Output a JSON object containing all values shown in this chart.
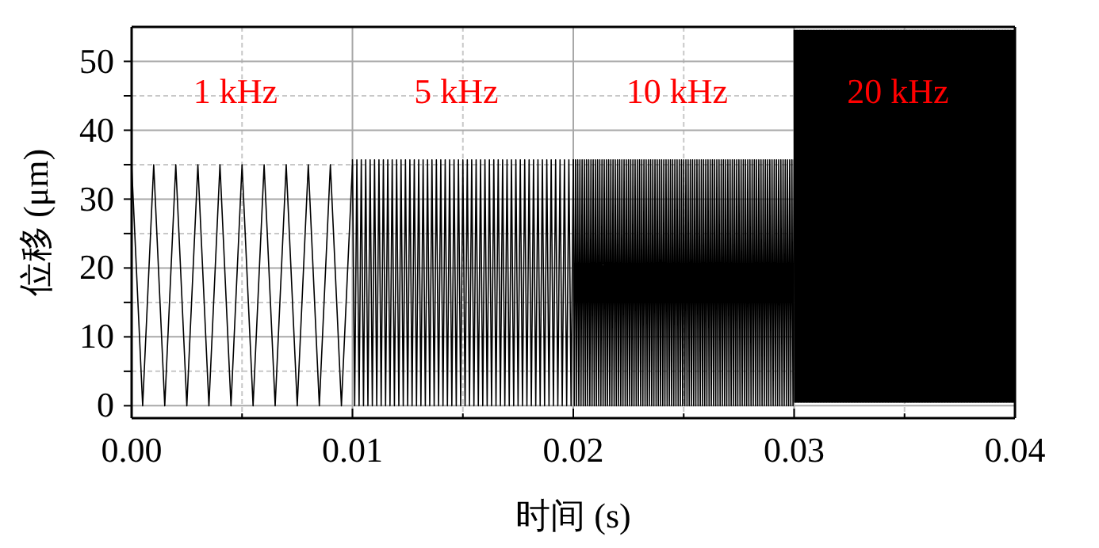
{
  "chart_data": {
    "type": "line",
    "xlabel": "时间 (s)",
    "ylabel": "位移 (μm)",
    "xlim": [
      0,
      0.04
    ],
    "ylim": [
      -1.8,
      55
    ],
    "xticks": [
      {
        "value": 0,
        "label": "0.00"
      },
      {
        "value": 0.005,
        "label": null
      },
      {
        "value": 0.01,
        "label": "0.01"
      },
      {
        "value": 0.015,
        "label": null
      },
      {
        "value": 0.02,
        "label": "0.02"
      },
      {
        "value": 0.025,
        "label": null
      },
      {
        "value": 0.03,
        "label": "0.03"
      },
      {
        "value": 0.035,
        "label": null
      },
      {
        "value": 0.04,
        "label": "0.04"
      }
    ],
    "yticks": [
      0,
      {
        "value": 5,
        "label": null
      },
      10,
      {
        "value": 15,
        "label": null
      },
      20,
      {
        "value": 25,
        "label": null
      },
      30,
      {
        "value": 35,
        "label": null
      },
      40,
      {
        "value": 45,
        "label": null
      },
      50
    ],
    "grid": true,
    "line_style": "solid",
    "marker": "none",
    "annotations": [
      "1 kHz",
      "5 kHz",
      "10 kHz",
      "20 kHz"
    ],
    "series": [
      {
        "color": "#000000",
        "x": [
          0,
          0.0005,
          0.001,
          0.0015,
          0.002,
          0.0025,
          0.003,
          0.0035,
          0.004,
          0.0045,
          0.005,
          0.0055,
          0.006,
          0.0065,
          0.007,
          0.0075,
          0.008,
          0.0085,
          0.009,
          0.0095,
          0.01
        ],
        "values": [
          35,
          0,
          35,
          0,
          35,
          0,
          35,
          0,
          35,
          0,
          35,
          0,
          35,
          0,
          35,
          0,
          35,
          0,
          35,
          0,
          35
        ]
      },
      {
        "color": "#000000",
        "x": [
          0.01,
          0.0101,
          0.0102,
          0.0103,
          0.0104,
          0.0105,
          0.0106,
          0.0107,
          0.0108,
          0.0109,
          0.011,
          0.0111,
          0.0112,
          0.0113,
          0.0114,
          0.0115,
          0.0116,
          0.0117,
          0.0118,
          0.0119,
          0.012,
          0.0121,
          0.0122,
          0.0123,
          0.0124,
          0.0125,
          0.0126,
          0.0127,
          0.0128,
          0.0129,
          0.013,
          0.0131,
          0.0132,
          0.0133,
          0.0134,
          0.0135,
          0.0136,
          0.0137,
          0.0138,
          0.0139,
          0.014,
          0.0141,
          0.0142,
          0.0143,
          0.0144,
          0.0145,
          0.0146,
          0.0147,
          0.0148,
          0.0149,
          0.015,
          0.0151,
          0.0152,
          0.0153,
          0.0154,
          0.0155,
          0.0156,
          0.0157,
          0.0158,
          0.0159,
          0.016,
          0.0161,
          0.0162,
          0.0163,
          0.0164,
          0.0165,
          0.0166,
          0.0167,
          0.0168,
          0.0169,
          0.017,
          0.0171,
          0.0172,
          0.0173,
          0.0174,
          0.0175,
          0.0176,
          0.0177,
          0.0178,
          0.0179,
          0.018,
          0.0181,
          0.0182,
          0.0183,
          0.0184,
          0.0185,
          0.0186,
          0.0187,
          0.0188,
          0.0189,
          0.019,
          0.0191,
          0.0192,
          0.0193,
          0.0194,
          0.0195,
          0.0196,
          0.0197,
          0.0198,
          0.0199,
          0.02
        ],
        "values": [
          35.7,
          0,
          35.7,
          0,
          35.7,
          0,
          35.7,
          0,
          35.7,
          0,
          35.7,
          0,
          35.7,
          0,
          35.7,
          0,
          35.7,
          0,
          35.7,
          0,
          35.7,
          0,
          35.7,
          0,
          35.7,
          0,
          35.7,
          0,
          35.7,
          0,
          35.7,
          0,
          35.7,
          0,
          35.7,
          0,
          35.7,
          0,
          35.7,
          0,
          35.7,
          0,
          35.7,
          0,
          35.7,
          0,
          35.7,
          0,
          35.7,
          0,
          35.7,
          0,
          35.7,
          0,
          35.7,
          0,
          35.7,
          0,
          35.7,
          0,
          35.7,
          0,
          35.7,
          0,
          35.7,
          0,
          35.7,
          0,
          35.7,
          0,
          35.7,
          0,
          35.7,
          0,
          35.7,
          0,
          35.7,
          0,
          35.7,
          0,
          35.7,
          0,
          35.7,
          0,
          35.7,
          0,
          35.7,
          0,
          35.7,
          0,
          35.7,
          0,
          35.7,
          0,
          35.7,
          0,
          35.7,
          0,
          35.7,
          0,
          35.7
        ]
      },
      {
        "color": "#000000",
        "x": [
          0.02,
          0.02005,
          0.0201,
          0.02015,
          0.0202,
          0.02025,
          0.0203,
          0.02035,
          0.0204,
          0.02045,
          0.0205,
          0.02055,
          0.0206,
          0.02065,
          0.0207,
          0.02075,
          0.0208,
          0.02085,
          0.0209,
          0.02095,
          0.021,
          0.02105,
          0.0211,
          0.02115,
          0.0212,
          0.02125,
          0.0213,
          0.02135,
          0.0214,
          0.02145,
          0.0215,
          0.02155,
          0.0216,
          0.02165,
          0.0217,
          0.02175,
          0.0218,
          0.02185,
          0.0219,
          0.02195,
          0.022,
          0.02205,
          0.0221,
          0.02215,
          0.0222,
          0.02225,
          0.0223,
          0.02235,
          0.0224,
          0.02245,
          0.0225,
          0.02255,
          0.0226,
          0.02265,
          0.0227,
          0.02275,
          0.0228,
          0.02285,
          0.0229,
          0.02295,
          0.023,
          0.02305,
          0.0231,
          0.02315,
          0.0232,
          0.02325,
          0.0233,
          0.02335,
          0.0234,
          0.02345,
          0.0235,
          0.02355,
          0.0236,
          0.02365,
          0.0237,
          0.02375,
          0.0238,
          0.02385,
          0.0239,
          0.02395,
          0.024,
          0.02405,
          0.0241,
          0.02415,
          0.0242,
          0.02425,
          0.0243,
          0.02435,
          0.0244,
          0.02445,
          0.0245,
          0.02455,
          0.0246,
          0.02465,
          0.0247,
          0.02475,
          0.0248,
          0.02485,
          0.0249,
          0.02495,
          0.025,
          0.02505,
          0.0251,
          0.02515,
          0.0252,
          0.02525,
          0.0253,
          0.02535,
          0.0254,
          0.02545,
          0.0255,
          0.02555,
          0.0256,
          0.02565,
          0.0257,
          0.02575,
          0.0258,
          0.02585,
          0.0259,
          0.02595,
          0.026,
          0.02605,
          0.0261,
          0.02615,
          0.0262,
          0.02625,
          0.0263,
          0.02635,
          0.0264,
          0.02645,
          0.0265,
          0.02655,
          0.0266,
          0.02665,
          0.0267,
          0.02675,
          0.0268,
          0.02685,
          0.0269,
          0.02695,
          0.027,
          0.02705,
          0.0271,
          0.02715,
          0.0272,
          0.02725,
          0.0273,
          0.02735,
          0.0274,
          0.02745,
          0.0275,
          0.02755,
          0.0276,
          0.02765,
          0.0277,
          0.02775,
          0.0278,
          0.02785,
          0.0279,
          0.02795,
          0.028,
          0.02805,
          0.0281,
          0.02815,
          0.0282,
          0.02825,
          0.0283,
          0.02835,
          0.0284,
          0.02845,
          0.0285,
          0.02855,
          0.0286,
          0.02865,
          0.0287,
          0.02875,
          0.0288,
          0.02885,
          0.0289,
          0.02895,
          0.029,
          0.02905,
          0.0291,
          0.02915,
          0.0292,
          0.02925,
          0.0293,
          0.02935,
          0.0294,
          0.02945,
          0.0295,
          0.02955,
          0.0296,
          0.02965,
          0.0297,
          0.02975,
          0.0298,
          0.02985,
          0.0299,
          0.02995,
          0.03
        ],
        "values": [
          35.7,
          0,
          35.7,
          0,
          35.7,
          0,
          35.7,
          0,
          35.7,
          0,
          35.7,
          0,
          35.7,
          0,
          35.7,
          0,
          35.7,
          0,
          35.7,
          0,
          35.7,
          0,
          35.7,
          0,
          35.7,
          0,
          35.7,
          0,
          35.7,
          0,
          35.7,
          0,
          35.7,
          0,
          35.7,
          0,
          35.7,
          0,
          35.7,
          0,
          35.7,
          0,
          35.7,
          0,
          35.7,
          0,
          35.7,
          0,
          35.7,
          0,
          35.7,
          0,
          35.7,
          0,
          35.7,
          0,
          35.7,
          0,
          35.7,
          0,
          35.7,
          0,
          35.7,
          0,
          35.7,
          0,
          35.7,
          0,
          35.7,
          0,
          35.7,
          0,
          35.7,
          0,
          35.7,
          0,
          35.7,
          0,
          35.7,
          0,
          35.7,
          0,
          35.7,
          0,
          35.7,
          0,
          35.7,
          0,
          35.7,
          0,
          35.7,
          0,
          35.7,
          0,
          35.7,
          0,
          35.7,
          0,
          35.7,
          0,
          35.7,
          0,
          35.7,
          0,
          35.7,
          0,
          35.7,
          0,
          35.7,
          0,
          35.7,
          0,
          35.7,
          0,
          35.7,
          0,
          35.7,
          0,
          35.7,
          0,
          35.7,
          0,
          35.7,
          0,
          35.7,
          0,
          35.7,
          0,
          35.7,
          0,
          35.7,
          0,
          35.7,
          0,
          35.7,
          0,
          35.7,
          0,
          35.7,
          0,
          35.7,
          0,
          35.7,
          0,
          35.7,
          0,
          35.7,
          0,
          35.7,
          0,
          35.7,
          0,
          35.7,
          0,
          35.7,
          0,
          35.7,
          0,
          35.7,
          0,
          35.7,
          0,
          35.7,
          0,
          35.7,
          0,
          35.7,
          0,
          35.7,
          0,
          35.7,
          0,
          35.7,
          0,
          35.7,
          0,
          35.7,
          0,
          35.7,
          0,
          35.7,
          0,
          35.7,
          0,
          35.7,
          0,
          35.7,
          0,
          35.7,
          0,
          35.7,
          0,
          35.7,
          0,
          35.7,
          0,
          35.7,
          0,
          35.7,
          0,
          35.7
        ]
      },
      {
        "color": "#000000",
        "x": [
          0.03,
          0.030025,
          0.03005,
          0.030075,
          0.0301,
          0.030125,
          0.03015,
          0.030175,
          0.0302,
          0.030225,
          0.03025,
          0.030275,
          0.0303,
          0.030325,
          0.03035,
          0.030375,
          0.0304,
          0.030425,
          0.03045,
          0.030475,
          0.0305,
          0.030525,
          0.03055,
          0.030575,
          0.0306,
          0.030625,
          0.03065,
          0.030675,
          0.0307,
          0.030725,
          0.03075,
          0.030775,
          0.0308,
          0.030825,
          0.03085,
          0.030875,
          0.0309,
          0.030925,
          0.03095,
          0.030975,
          0.031,
          0.031025,
          0.03105,
          0.031075,
          0.0311,
          0.031125,
          0.03115,
          0.031175,
          0.0312,
          0.031225,
          0.03125,
          0.031275,
          0.0313,
          0.031325,
          0.03135,
          0.031375,
          0.0314,
          0.031425,
          0.03145,
          0.031475,
          0.0315,
          0.031525,
          0.03155,
          0.031575,
          0.0316,
          0.031625,
          0.03165,
          0.031675,
          0.0317,
          0.031725,
          0.03175,
          0.031775,
          0.0318,
          0.031825,
          0.03185,
          0.031875,
          0.0319,
          0.031925,
          0.03195,
          0.031975,
          0.032,
          0.032025,
          0.03205,
          0.032075,
          0.0321,
          0.032125,
          0.03215,
          0.032175,
          0.0322,
          0.032225,
          0.03225,
          0.032275,
          0.0323,
          0.032325,
          0.03235,
          0.032375,
          0.0324,
          0.032425,
          0.03245,
          0.032475,
          0.0325,
          0.032525,
          0.03255,
          0.032575,
          0.0326,
          0.032625,
          0.03265,
          0.032675,
          0.0327,
          0.032725,
          0.03275,
          0.032775,
          0.0328,
          0.032825,
          0.03285,
          0.032875,
          0.0329,
          0.032925,
          0.03295,
          0.032975,
          0.033,
          0.033025,
          0.03305,
          0.033075,
          0.0331,
          0.033125,
          0.03315,
          0.033175,
          0.0332,
          0.033225,
          0.03325,
          0.033275,
          0.0333,
          0.033325,
          0.03335,
          0.033375,
          0.0334,
          0.033425,
          0.03345,
          0.033475,
          0.0335,
          0.033525,
          0.03355,
          0.033575,
          0.0336,
          0.033625,
          0.03365,
          0.033675,
          0.0337,
          0.033725,
          0.03375,
          0.033775,
          0.0338,
          0.033825,
          0.03385,
          0.033875,
          0.0339,
          0.033925,
          0.03395,
          0.033975,
          0.034,
          0.034025,
          0.03405,
          0.034075,
          0.0341,
          0.034125,
          0.03415,
          0.034175,
          0.0342,
          0.034225,
          0.03425,
          0.034275,
          0.0343,
          0.034325,
          0.03435,
          0.034375,
          0.0344,
          0.034425,
          0.03445,
          0.034475,
          0.0345,
          0.034525,
          0.03455,
          0.034575,
          0.0346,
          0.034625,
          0.03465,
          0.034675,
          0.0347,
          0.034725,
          0.03475,
          0.034775,
          0.0348,
          0.034825,
          0.03485,
          0.034875,
          0.0349,
          0.034925,
          0.03495,
          0.034975,
          0.035,
          0.035025,
          0.03505,
          0.035075,
          0.0351,
          0.035125,
          0.03515,
          0.035175,
          0.0352,
          0.035225,
          0.03525,
          0.035275,
          0.0353,
          0.035325,
          0.03535,
          0.035375,
          0.0354,
          0.035425,
          0.03545,
          0.035475,
          0.0355,
          0.035525,
          0.03555,
          0.035575,
          0.0356,
          0.035625,
          0.03565,
          0.035675,
          0.0357,
          0.035725,
          0.03575,
          0.035775,
          0.0358,
          0.035825,
          0.03585,
          0.035875,
          0.0359,
          0.035925,
          0.03595,
          0.035975,
          0.036,
          0.036025,
          0.03605,
          0.036075,
          0.0361,
          0.036125,
          0.03615,
          0.036175,
          0.0362,
          0.036225,
          0.03625,
          0.036275,
          0.0363,
          0.036325,
          0.03635,
          0.036375,
          0.0364,
          0.036425,
          0.03645,
          0.036475,
          0.0365,
          0.036525,
          0.03655,
          0.036575,
          0.0366,
          0.036625,
          0.03665,
          0.036675,
          0.0367,
          0.036725,
          0.03675,
          0.036775,
          0.0368,
          0.036825,
          0.03685,
          0.036875,
          0.0369,
          0.036925,
          0.03695,
          0.036975,
          0.037,
          0.037025,
          0.03705,
          0.037075,
          0.0371,
          0.037125,
          0.03715,
          0.037175,
          0.0372,
          0.037225,
          0.03725,
          0.037275,
          0.0373,
          0.037325,
          0.03735,
          0.037375,
          0.0374,
          0.037425,
          0.03745,
          0.037475,
          0.0375,
          0.037525,
          0.03755,
          0.037575,
          0.0376,
          0.037625,
          0.03765,
          0.037675,
          0.0377,
          0.037725,
          0.03775,
          0.037775,
          0.0378,
          0.037825,
          0.03785,
          0.037875,
          0.0379,
          0.037925,
          0.03795,
          0.037975,
          0.038,
          0.038025,
          0.03805,
          0.038075,
          0.0381,
          0.038125,
          0.03815,
          0.038175,
          0.0382,
          0.038225,
          0.03825,
          0.038275,
          0.0383,
          0.038325,
          0.03835,
          0.038375,
          0.0384,
          0.038425,
          0.03845,
          0.038475,
          0.0385,
          0.038525,
          0.03855,
          0.038575,
          0.0386,
          0.038625,
          0.03865,
          0.038675,
          0.0387,
          0.038725,
          0.03875,
          0.038775,
          0.0388,
          0.038825,
          0.03885,
          0.038875,
          0.0389,
          0.038925,
          0.03895,
          0.038975,
          0.039,
          0.039025,
          0.03905,
          0.039075,
          0.0391,
          0.039125,
          0.03915,
          0.039175,
          0.0392,
          0.039225,
          0.03925,
          0.039275,
          0.0393,
          0.039325,
          0.03935,
          0.039375,
          0.0394,
          0.039425,
          0.03945,
          0.039475,
          0.0395,
          0.039525,
          0.03955,
          0.039575,
          0.0396,
          0.039625,
          0.03965,
          0.039675,
          0.0397,
          0.039725,
          0.03975,
          0.039775,
          0.0398,
          0.039825,
          0.03985,
          0.039875,
          0.0399,
          0.039925,
          0.03995,
          0.039975,
          0.04
        ],
        "values": [
          54.5,
          0.5,
          54.5,
          0.5,
          54.5,
          0.5,
          54.5,
          0.5,
          54.5,
          0.5,
          54.5,
          0.5,
          54.5,
          0.5,
          54.5,
          0.5,
          54.5,
          0.5,
          54.5,
          0.5,
          54.5,
          0.5,
          54.5,
          0.5,
          54.5,
          0.5,
          54.5,
          0.5,
          54.5,
          0.5,
          54.5,
          0.5,
          54.5,
          0.5,
          54.5,
          0.5,
          54.5,
          0.5,
          54.5,
          0.5,
          54.5,
          0.5,
          54.5,
          0.5,
          54.5,
          0.5,
          54.5,
          0.5,
          54.5,
          0.5,
          54.5,
          0.5,
          54.5,
          0.5,
          54.5,
          0.5,
          54.5,
          0.5,
          54.5,
          0.5,
          54.5,
          0.5,
          54.5,
          0.5,
          54.5,
          0.5,
          54.5,
          0.5,
          54.5,
          0.5,
          54.5,
          0.5,
          54.5,
          0.5,
          54.5,
          0.5,
          54.5,
          0.5,
          54.5,
          0.5,
          54.5,
          0.5,
          54.5,
          0.5,
          54.5,
          0.5,
          54.5,
          0.5,
          54.5,
          0.5,
          54.5,
          0.5,
          54.5,
          0.5,
          54.5,
          0.5,
          54.5,
          0.5,
          54.5,
          0.5,
          54.5,
          0.5,
          54.5,
          0.5,
          54.5,
          0.5,
          54.5,
          0.5,
          54.5,
          0.5,
          54.5,
          0.5,
          54.5,
          0.5,
          54.5,
          0.5,
          54.5,
          0.5,
          54.5,
          0.5,
          54.5,
          0.5,
          54.5,
          0.5,
          54.5,
          0.5,
          54.5,
          0.5,
          54.5,
          0.5,
          54.5,
          0.5,
          54.5,
          0.5,
          54.5,
          0.5,
          54.5,
          0.5,
          54.5,
          0.5,
          54.5,
          0.5,
          54.5,
          0.5,
          54.5,
          0.5,
          54.5,
          0.5,
          54.5,
          0.5,
          54.5,
          0.5,
          54.5,
          0.5,
          54.5,
          0.5,
          54.5,
          0.5,
          54.5,
          0.5,
          54.5,
          0.5,
          54.5,
          0.5,
          54.5,
          0.5,
          54.5,
          0.5,
          54.5,
          0.5,
          54.5,
          0.5,
          54.5,
          0.5,
          54.5,
          0.5,
          54.5,
          0.5,
          54.5,
          0.5,
          54.5,
          0.5,
          54.5,
          0.5,
          54.5,
          0.5,
          54.5,
          0.5,
          54.5,
          0.5,
          54.5,
          0.5,
          54.5,
          0.5,
          54.5,
          0.5,
          54.5,
          0.5,
          54.5,
          0.5,
          54.5,
          0.5,
          54.5,
          0.5,
          54.5,
          0.5,
          54.5,
          0.5,
          54.5,
          0.5,
          54.5,
          0.5,
          54.5,
          0.5,
          54.5,
          0.5,
          54.5,
          0.5,
          54.5,
          0.5,
          54.5,
          0.5,
          54.5,
          0.5,
          54.5,
          0.5,
          54.5,
          0.5,
          54.5,
          0.5,
          54.5,
          0.5,
          54.5,
          0.5,
          54.5,
          0.5,
          54.5,
          0.5,
          54.5,
          0.5,
          54.5,
          0.5,
          54.5,
          0.5,
          54.5,
          0.5,
          54.5,
          0.5,
          54.5,
          0.5,
          54.5,
          0.5,
          54.5,
          0.5,
          54.5,
          0.5,
          54.5,
          0.5,
          54.5,
          0.5,
          54.5,
          0.5,
          54.5,
          0.5,
          54.5,
          0.5,
          54.5,
          0.5,
          54.5,
          0.5,
          54.5,
          0.5,
          54.5,
          0.5,
          54.5,
          0.5,
          54.5,
          0.5,
          54.5,
          0.5,
          54.5,
          0.5,
          54.5,
          0.5,
          54.5,
          0.5,
          54.5,
          0.5,
          54.5,
          0.5,
          54.5,
          0.5,
          54.5,
          0.5,
          54.5,
          0.5,
          54.5,
          0.5,
          54.5,
          0.5,
          54.5,
          0.5,
          54.5,
          0.5,
          54.5,
          0.5,
          54.5,
          0.5,
          54.5,
          0.5,
          54.5,
          0.5,
          54.5,
          0.5,
          54.5,
          0.5,
          54.5,
          0.5,
          54.5,
          0.5,
          54.5,
          0.5,
          54.5,
          0.5,
          54.5,
          0.5,
          54.5,
          0.5,
          54.5,
          0.5,
          54.5,
          0.5,
          54.5,
          0.5,
          54.5,
          0.5,
          54.5,
          0.5,
          54.5,
          0.5,
          54.5,
          0.5,
          54.5,
          0.5,
          54.5,
          0.5,
          54.5,
          0.5,
          54.5,
          0.5,
          54.5,
          0.5,
          54.5,
          0.5,
          54.5,
          0.5,
          54.5,
          0.5,
          54.5,
          0.5,
          54.5,
          0.5,
          54.5,
          0.5,
          54.5,
          0.5,
          54.5,
          0.5,
          54.5,
          0.5,
          54.5,
          0.5,
          54.5,
          0.5,
          54.5,
          0.5,
          54.5,
          0.5,
          54.5,
          0.5,
          54.5,
          0.5,
          54.5,
          0.5,
          54.5,
          0.5,
          54.5,
          0.5,
          54.5,
          0.5,
          54.5,
          0.5,
          54.5,
          0.5,
          54.5,
          0.5,
          54.5,
          0.5,
          54.5,
          0.5,
          54.5
        ]
      }
    ]
  }
}
